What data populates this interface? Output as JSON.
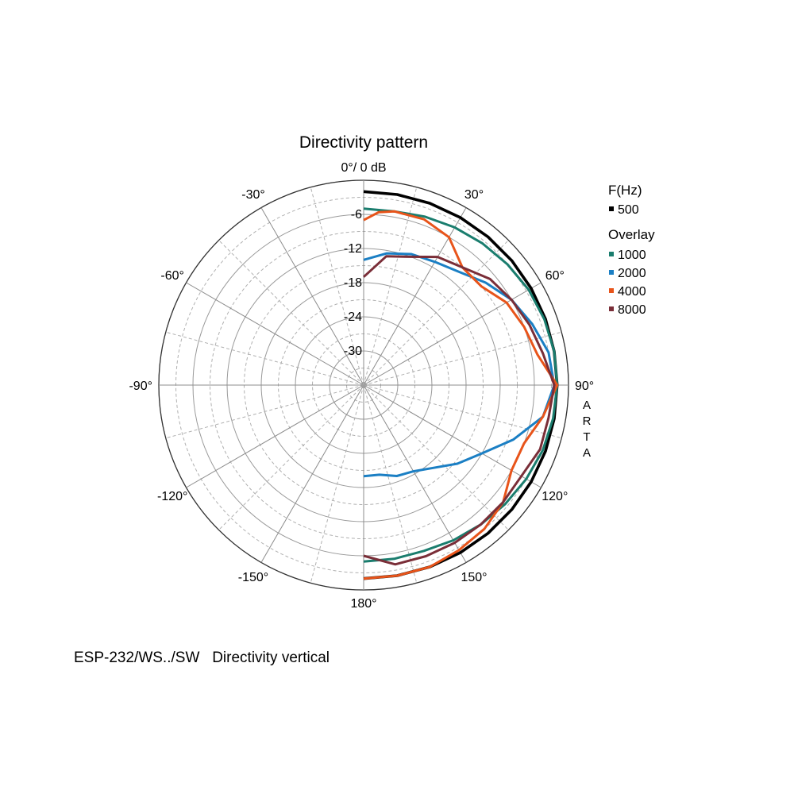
{
  "chart_data": {
    "type": "polar",
    "title": "Directivity pattern",
    "reference_label": "0°/ 0 dB",
    "brand_label": "ARTA",
    "radial_range_db": [
      -36,
      0
    ],
    "radial_ticks": [
      {
        "value": -6,
        "label": "-6"
      },
      {
        "value": -12,
        "label": "-12"
      },
      {
        "value": -18,
        "label": "-18"
      },
      {
        "value": -24,
        "label": "-24"
      },
      {
        "value": -30,
        "label": "-30"
      }
    ],
    "angle_ticks": [
      {
        "angle": -30,
        "label": "-30°"
      },
      {
        "angle": 30,
        "label": "30°"
      },
      {
        "angle": -60,
        "label": "-60°"
      },
      {
        "angle": 60,
        "label": "60°"
      },
      {
        "angle": -90,
        "label": "-90°"
      },
      {
        "angle": 90,
        "label": "90°"
      },
      {
        "angle": -120,
        "label": "-120°"
      },
      {
        "angle": 120,
        "label": "120°"
      },
      {
        "angle": -150,
        "label": "-150°"
      },
      {
        "angle": 150,
        "label": "150°"
      },
      {
        "angle": 180,
        "label": "180°"
      }
    ],
    "legend": {
      "header": "F(Hz)",
      "overlay_header": "Overlay",
      "position": "right"
    },
    "series": [
      {
        "name": "500",
        "color": "#000000",
        "overlay": false,
        "points": [
          [
            0,
            -2
          ],
          [
            10,
            -2
          ],
          [
            20,
            -2
          ],
          [
            30,
            -2
          ],
          [
            40,
            -2
          ],
          [
            50,
            -2
          ],
          [
            60,
            -2
          ],
          [
            70,
            -2
          ],
          [
            80,
            -2
          ],
          [
            90,
            -2
          ],
          [
            100,
            -2
          ],
          [
            110,
            -2
          ],
          [
            120,
            -2
          ],
          [
            130,
            -2
          ],
          [
            140,
            -2
          ],
          [
            150,
            -2
          ],
          [
            160,
            -2
          ],
          [
            170,
            -2
          ],
          [
            180,
            -2
          ]
        ]
      },
      {
        "name": "1000",
        "color": "#1a7d6e",
        "overlay": true,
        "points": [
          [
            0,
            -5
          ],
          [
            10,
            -5
          ],
          [
            20,
            -4.5
          ],
          [
            30,
            -4
          ],
          [
            40,
            -3.5
          ],
          [
            50,
            -3
          ],
          [
            60,
            -2.5
          ],
          [
            70,
            -2.2
          ],
          [
            80,
            -2
          ],
          [
            90,
            -2
          ],
          [
            100,
            -2.2
          ],
          [
            110,
            -2.5
          ],
          [
            120,
            -3
          ],
          [
            130,
            -3.5
          ],
          [
            140,
            -4
          ],
          [
            150,
            -4.5
          ],
          [
            160,
            -5
          ],
          [
            170,
            -5
          ],
          [
            180,
            -5
          ]
        ]
      },
      {
        "name": "2000",
        "color": "#1b7fc4",
        "overlay": true,
        "points": [
          [
            0,
            -14
          ],
          [
            10,
            -12.5
          ],
          [
            20,
            -11.5
          ],
          [
            30,
            -11
          ],
          [
            40,
            -10
          ],
          [
            50,
            -8
          ],
          [
            60,
            -6
          ],
          [
            70,
            -4.5
          ],
          [
            80,
            -3
          ],
          [
            90,
            -2.5
          ],
          [
            100,
            -4
          ],
          [
            110,
            -8
          ],
          [
            120,
            -12
          ],
          [
            130,
            -14.5
          ],
          [
            140,
            -17
          ],
          [
            150,
            -18.5
          ],
          [
            160,
            -19
          ],
          [
            170,
            -20
          ],
          [
            180,
            -20
          ]
        ]
      },
      {
        "name": "4000",
        "color": "#e8541a",
        "overlay": true,
        "points": [
          [
            0,
            -7
          ],
          [
            5,
            -5.5
          ],
          [
            10,
            -5
          ],
          [
            20,
            -5
          ],
          [
            30,
            -6
          ],
          [
            40,
            -9
          ],
          [
            50,
            -9
          ],
          [
            60,
            -7
          ],
          [
            70,
            -6
          ],
          [
            80,
            -5
          ],
          [
            90,
            -2
          ],
          [
            100,
            -4
          ],
          [
            110,
            -6
          ],
          [
            120,
            -6
          ],
          [
            130,
            -4
          ],
          [
            140,
            -3
          ],
          [
            150,
            -2.5
          ],
          [
            160,
            -2
          ],
          [
            170,
            -2
          ],
          [
            180,
            -2
          ]
        ]
      },
      {
        "name": "8000",
        "color": "#7a2e38",
        "overlay": true,
        "points": [
          [
            0,
            -17
          ],
          [
            10,
            -13
          ],
          [
            20,
            -12
          ],
          [
            30,
            -10
          ],
          [
            40,
            -9
          ],
          [
            50,
            -7
          ],
          [
            60,
            -6
          ],
          [
            70,
            -5
          ],
          [
            80,
            -4
          ],
          [
            90,
            -2.5
          ],
          [
            100,
            -3
          ],
          [
            110,
            -3
          ],
          [
            120,
            -4
          ],
          [
            130,
            -4
          ],
          [
            140,
            -4
          ],
          [
            150,
            -4
          ],
          [
            160,
            -4
          ],
          [
            170,
            -4
          ],
          [
            180,
            -6
          ]
        ]
      }
    ]
  },
  "caption": "ESP-232/WS../SW   Directivity vertical"
}
